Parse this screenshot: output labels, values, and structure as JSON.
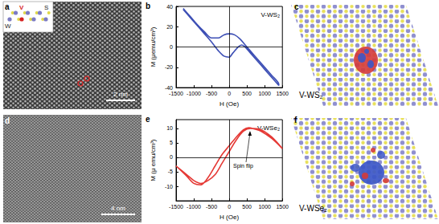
{
  "panels": [
    "a",
    "b",
    "c",
    "d",
    "e",
    "f"
  ],
  "image_texts": {
    "a": {
      "inset_labels": [
        "V",
        "S",
        "W"
      ],
      "scale_bar": "2 nm"
    },
    "c": {
      "label": "V-WS₂"
    },
    "d": {
      "scale_bar": "4 nm"
    },
    "f": {
      "label": "V-WSe₂"
    }
  },
  "chart_data": [
    {
      "type": "line",
      "xlabel": "H (Oe)",
      "ylabel": "M (μemu/cm³)",
      "annotations": [
        "V-WS₂"
      ],
      "color": "#3d4fb5",
      "grid": false,
      "xlim": [
        -1500,
        1500
      ],
      "xticks": [
        -1500,
        -1000,
        -500,
        0,
        500,
        1000,
        1500
      ],
      "ylim": [
        -40,
        40
      ],
      "yticks": [
        -40,
        -20,
        0,
        20,
        40
      ],
      "x": [
        -1300,
        -1100,
        -900,
        -700,
        -500,
        -300,
        -150,
        0,
        150,
        300,
        450,
        600,
        800,
        1000,
        1200,
        1400,
        1400,
        1200,
        1000,
        800,
        600,
        450,
        350,
        250,
        100,
        0,
        -150,
        -300,
        -500,
        -700,
        -900,
        -1100,
        -1300
      ],
      "values": [
        38,
        30,
        22,
        15,
        9,
        9,
        12,
        13,
        12,
        8,
        2,
        -4,
        -12,
        -20,
        -28,
        -37,
        -38,
        -30,
        -22,
        -14,
        -6,
        0,
        2,
        0,
        -6,
        -10,
        -9,
        -4,
        5,
        13,
        21,
        29,
        37
      ]
    },
    {
      "type": "line",
      "xlabel": "H (Oe)",
      "ylabel": "M (μ emu/cm³)",
      "annotations": [
        "V-WSe₂",
        "Spin flip"
      ],
      "color": "#e53935",
      "grid": false,
      "xlim": [
        -1500,
        1500
      ],
      "xticks": [
        -1500,
        -1000,
        -500,
        0,
        500,
        1000,
        1500
      ],
      "ylim": [
        -15,
        13
      ],
      "yticks": [
        -10,
        -5,
        0,
        5,
        10
      ],
      "x": [
        1500,
        1200,
        900,
        600,
        400,
        200,
        0,
        -200,
        -400,
        -600,
        -800,
        -1000,
        -1200,
        -1500,
        -1500,
        -1200,
        -1000,
        -800,
        -600,
        -400,
        -200,
        0,
        200,
        400,
        550,
        700,
        900,
        1200,
        1500
      ],
      "values": [
        3,
        7,
        9.5,
        10,
        9,
        6,
        2,
        -2,
        -6,
        -8,
        -9,
        -8,
        -6,
        -3,
        -3,
        -6.5,
        -9,
        -9.5,
        -7,
        -3,
        1,
        4,
        7,
        9.5,
        10.2,
        9.8,
        9,
        6.5,
        3
      ]
    }
  ]
}
